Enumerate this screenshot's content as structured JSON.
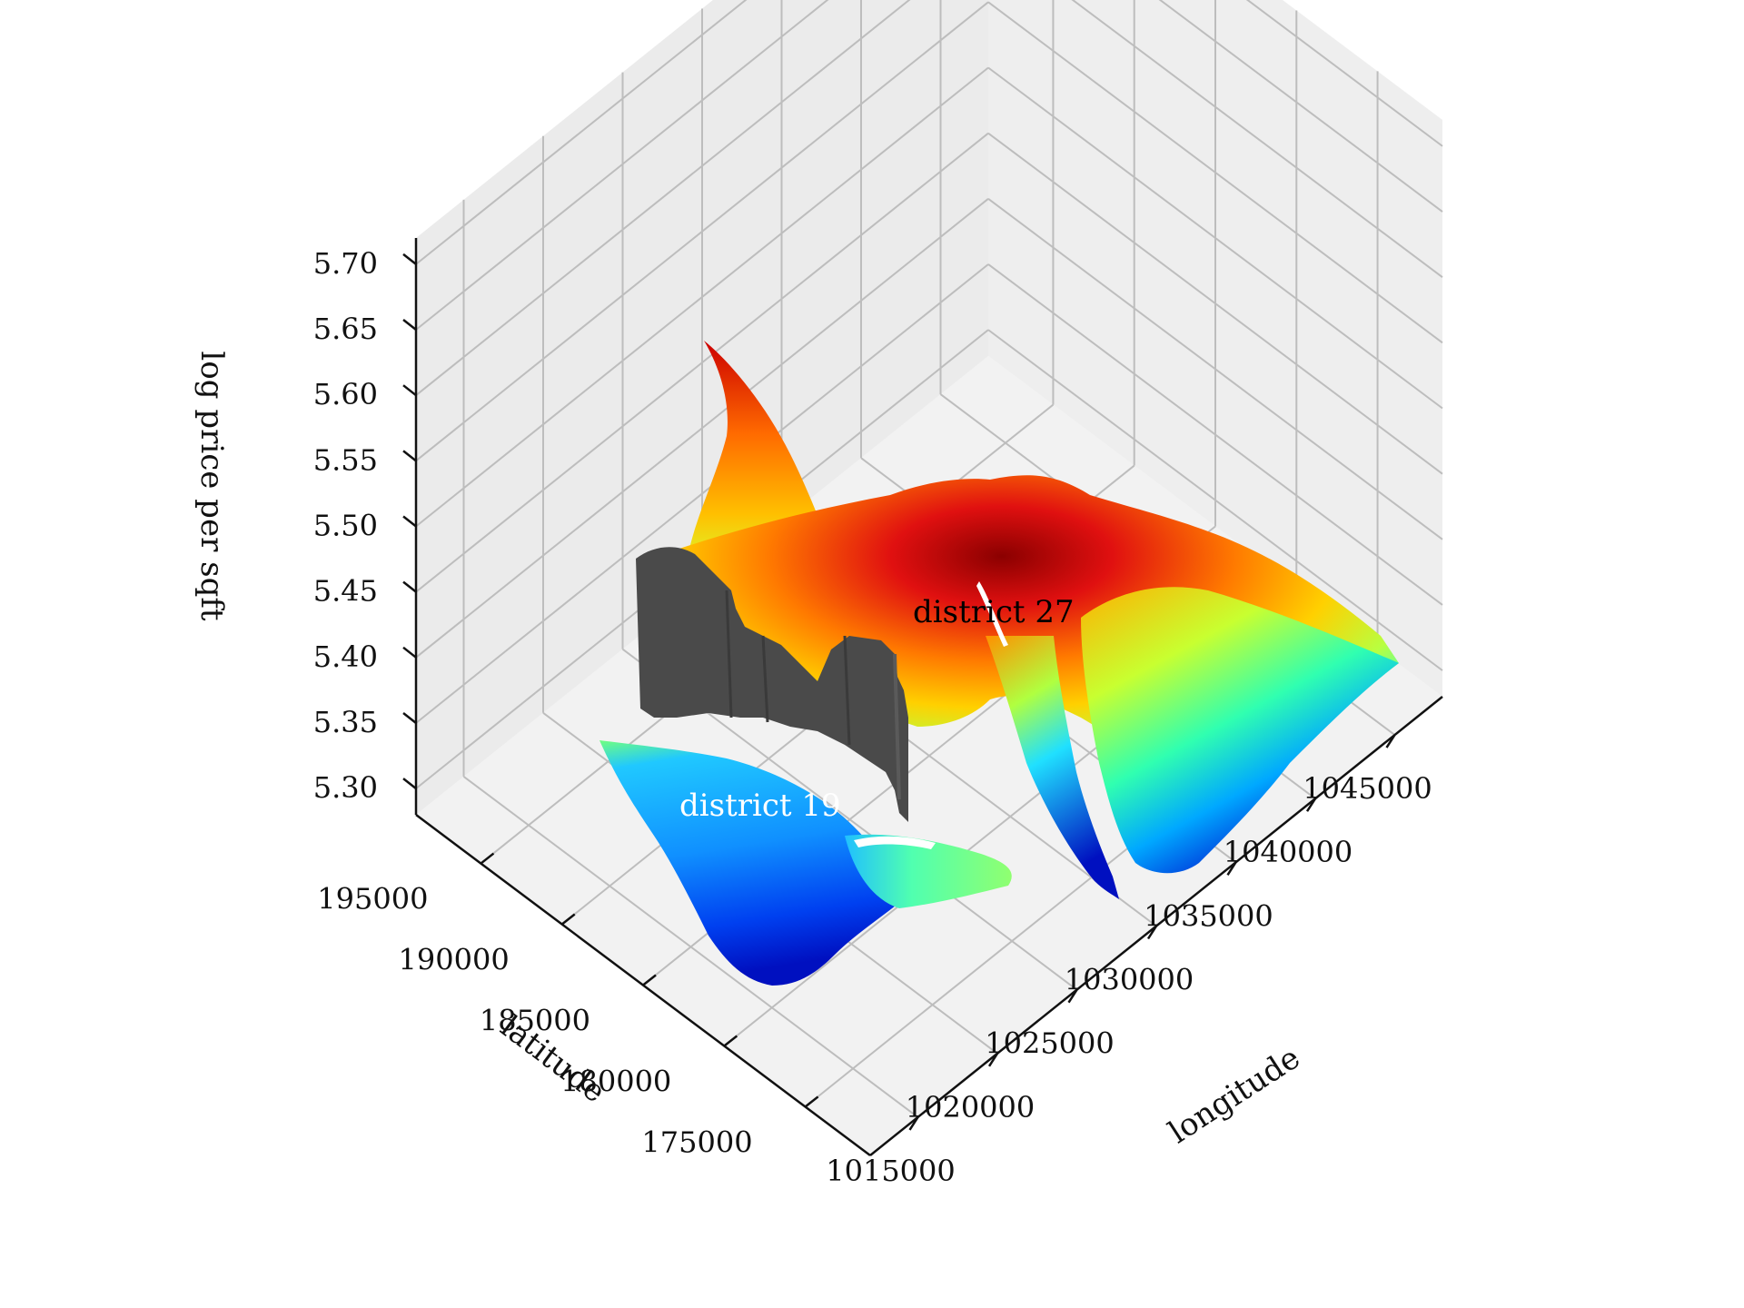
{
  "chart_data": {
    "type": "surface",
    "title": "",
    "xlabel": "longitude",
    "ylabel": "latitude",
    "zlabel": "log price per sqft",
    "x_ticks": [
      "1015000",
      "1020000",
      "1025000",
      "1030000",
      "1035000",
      "1040000",
      "1045000"
    ],
    "y_ticks": [
      "175000",
      "180000",
      "185000",
      "190000",
      "195000"
    ],
    "z_ticks": [
      "5.30",
      "5.35",
      "5.40",
      "5.45",
      "5.50",
      "5.55",
      "5.60",
      "5.65",
      "5.70"
    ],
    "xlim": [
      1012000,
      1048000
    ],
    "ylim": [
      171000,
      199000
    ],
    "zlim": [
      5.28,
      5.72
    ],
    "colormap": "jet",
    "grid": true,
    "annotations": [
      {
        "text": "district 27",
        "x": 1033000,
        "y": 188000,
        "z": 5.62,
        "color": "#000000"
      },
      {
        "text": "district 19",
        "x": 1018000,
        "y": 185000,
        "z": 5.45,
        "color": "#ffffff"
      }
    ],
    "boundary_wall_color": "#4a4a4a"
  }
}
